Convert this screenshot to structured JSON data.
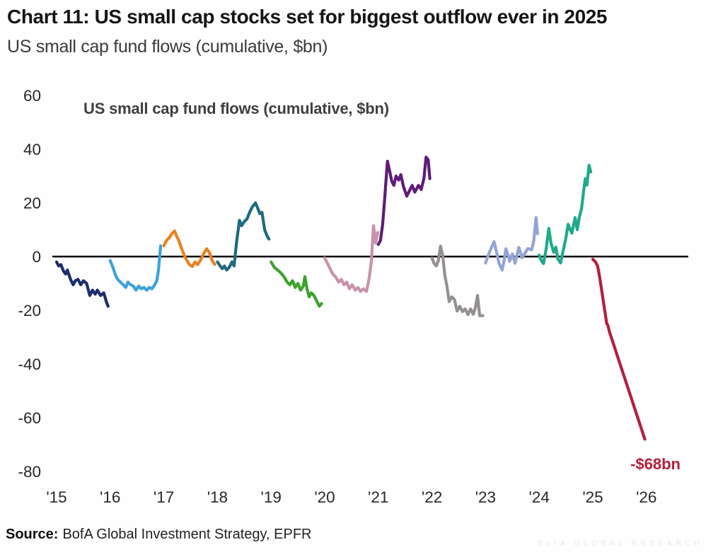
{
  "header": {
    "title": "Chart 11: US small cap stocks set for biggest outflow ever in 2025",
    "subtitle": "US small cap fund flows (cumulative, $bn)"
  },
  "chart_data": {
    "type": "line",
    "title": "US small cap fund flows (cumulative, $bn)",
    "ylabel": "",
    "xlabel": "",
    "ylim": [
      -80,
      60
    ],
    "y_ticks": [
      60,
      40,
      20,
      0,
      -20,
      -40,
      -60,
      -80
    ],
    "x_ticks": [
      "'15",
      "'16",
      "'17",
      "'18",
      "'19",
      "'20",
      "'21",
      "'22",
      "'23",
      "'24",
      "'25",
      "'26"
    ],
    "grid": false,
    "zero_line": true,
    "legend_position": "none",
    "unit": "$bn",
    "annotation": {
      "text": "-$68bn",
      "color": "#b41f3a",
      "x_year": "'26",
      "value": -68
    },
    "series": [
      {
        "name": "2015",
        "year": 2015,
        "color": "#1c2d6e",
        "points": [
          [
            0.0,
            -2
          ],
          [
            0.04,
            -3.5
          ],
          [
            0.08,
            -3
          ],
          [
            0.13,
            -5.5
          ],
          [
            0.17,
            -6.5
          ],
          [
            0.2,
            -5
          ],
          [
            0.26,
            -8.5
          ],
          [
            0.31,
            -10.5
          ],
          [
            0.35,
            -9
          ],
          [
            0.4,
            -8.5
          ],
          [
            0.45,
            -10.5
          ],
          [
            0.5,
            -9
          ],
          [
            0.56,
            -10
          ],
          [
            0.62,
            -14.5
          ],
          [
            0.67,
            -12.5
          ],
          [
            0.72,
            -14
          ],
          [
            0.76,
            -12.5
          ],
          [
            0.82,
            -14.5
          ],
          [
            0.88,
            -13.5
          ],
          [
            0.93,
            -17
          ],
          [
            0.96,
            -18.5
          ]
        ]
      },
      {
        "name": "2016",
        "year": 2016,
        "color": "#3ba2df",
        "points": [
          [
            0.0,
            -1.5
          ],
          [
            0.05,
            -4
          ],
          [
            0.1,
            -7
          ],
          [
            0.14,
            -8.5
          ],
          [
            0.19,
            -9.5
          ],
          [
            0.24,
            -10.5
          ],
          [
            0.29,
            -11.5
          ],
          [
            0.33,
            -9.5
          ],
          [
            0.38,
            -10.5
          ],
          [
            0.43,
            -11
          ],
          [
            0.48,
            -12.5
          ],
          [
            0.53,
            -11
          ],
          [
            0.58,
            -12
          ],
          [
            0.63,
            -11.5
          ],
          [
            0.68,
            -12.5
          ],
          [
            0.73,
            -11.5
          ],
          [
            0.78,
            -12
          ],
          [
            0.83,
            -10.5
          ],
          [
            0.87,
            -9
          ],
          [
            0.9,
            -5
          ],
          [
            0.94,
            4
          ]
        ]
      },
      {
        "name": "2017",
        "year": 2017,
        "color": "#e8811c",
        "points": [
          [
            0.0,
            4
          ],
          [
            0.05,
            6
          ],
          [
            0.1,
            7
          ],
          [
            0.15,
            8.5
          ],
          [
            0.2,
            9.5
          ],
          [
            0.24,
            7.5
          ],
          [
            0.28,
            6
          ],
          [
            0.33,
            3
          ],
          [
            0.38,
            0.5
          ],
          [
            0.43,
            -1.5
          ],
          [
            0.48,
            -3
          ],
          [
            0.53,
            -3.7
          ],
          [
            0.58,
            -2
          ],
          [
            0.63,
            -3
          ],
          [
            0.68,
            -1.5
          ],
          [
            0.74,
            1
          ],
          [
            0.8,
            2.9
          ],
          [
            0.85,
            1.5
          ],
          [
            0.9,
            -1.5
          ],
          [
            0.95,
            -2.9
          ]
        ]
      },
      {
        "name": "2018",
        "year": 2018,
        "color": "#1d6b7d",
        "points": [
          [
            0.0,
            -2
          ],
          [
            0.05,
            -3.5
          ],
          [
            0.09,
            -4.5
          ],
          [
            0.13,
            -3.5
          ],
          [
            0.17,
            -5
          ],
          [
            0.22,
            -4
          ],
          [
            0.27,
            -2
          ],
          [
            0.31,
            -3.5
          ],
          [
            0.36,
            6
          ],
          [
            0.41,
            13.5
          ],
          [
            0.45,
            11.5
          ],
          [
            0.5,
            13
          ],
          [
            0.55,
            14
          ],
          [
            0.6,
            16.5
          ],
          [
            0.65,
            18.5
          ],
          [
            0.71,
            20
          ],
          [
            0.75,
            18
          ],
          [
            0.79,
            16
          ],
          [
            0.83,
            16.5
          ],
          [
            0.88,
            10
          ],
          [
            0.93,
            7.5
          ],
          [
            0.96,
            6.5
          ]
        ]
      },
      {
        "name": "2019",
        "year": 2019,
        "color": "#3da32b",
        "points": [
          [
            0.0,
            -2
          ],
          [
            0.06,
            -4
          ],
          [
            0.12,
            -5
          ],
          [
            0.18,
            -6
          ],
          [
            0.24,
            -7.5
          ],
          [
            0.3,
            -9.5
          ],
          [
            0.35,
            -10.5
          ],
          [
            0.4,
            -9
          ],
          [
            0.45,
            -11.5
          ],
          [
            0.5,
            -10
          ],
          [
            0.55,
            -12.5
          ],
          [
            0.6,
            -11
          ],
          [
            0.63,
            -7.5
          ],
          [
            0.67,
            -12
          ],
          [
            0.71,
            -15
          ],
          [
            0.75,
            -13.5
          ],
          [
            0.8,
            -14.5
          ],
          [
            0.85,
            -16.5
          ],
          [
            0.9,
            -18.5
          ],
          [
            0.94,
            -17.5
          ]
        ]
      },
      {
        "name": "2020",
        "year": 2020,
        "color": "#c793a9",
        "points": [
          [
            0.0,
            -0.5
          ],
          [
            0.05,
            -2.5
          ],
          [
            0.1,
            -4.5
          ],
          [
            0.15,
            -6.5
          ],
          [
            0.2,
            -7.5
          ],
          [
            0.26,
            -9.5
          ],
          [
            0.31,
            -8.5
          ],
          [
            0.36,
            -10.5
          ],
          [
            0.41,
            -9.5
          ],
          [
            0.46,
            -12
          ],
          [
            0.51,
            -10.5
          ],
          [
            0.57,
            -12.5
          ],
          [
            0.62,
            -11.5
          ],
          [
            0.67,
            -13
          ],
          [
            0.72,
            -12
          ],
          [
            0.78,
            -13
          ],
          [
            0.83,
            -8
          ],
          [
            0.87,
            -2
          ],
          [
            0.91,
            11.5
          ],
          [
            0.95,
            5
          ],
          [
            0.99,
            9
          ]
        ]
      },
      {
        "name": "2021",
        "year": 2021,
        "color": "#5e1c78",
        "points": [
          [
            0.0,
            4.5
          ],
          [
            0.04,
            6
          ],
          [
            0.08,
            12
          ],
          [
            0.12,
            22
          ],
          [
            0.17,
            35.5
          ],
          [
            0.21,
            32
          ],
          [
            0.25,
            28
          ],
          [
            0.29,
            26.5
          ],
          [
            0.33,
            30
          ],
          [
            0.38,
            28.5
          ],
          [
            0.42,
            30.5
          ],
          [
            0.47,
            26
          ],
          [
            0.53,
            22.5
          ],
          [
            0.58,
            24.5
          ],
          [
            0.63,
            26.5
          ],
          [
            0.68,
            24
          ],
          [
            0.75,
            26.5
          ],
          [
            0.8,
            25
          ],
          [
            0.85,
            29
          ],
          [
            0.89,
            37
          ],
          [
            0.93,
            36
          ],
          [
            0.96,
            29
          ]
        ]
      },
      {
        "name": "2022",
        "year": 2022,
        "color": "#949090",
        "points": [
          [
            0.0,
            -0.5
          ],
          [
            0.04,
            -2.5
          ],
          [
            0.08,
            -3.5
          ],
          [
            0.12,
            -1.5
          ],
          [
            0.16,
            3.9
          ],
          [
            0.2,
            0.5
          ],
          [
            0.24,
            -7
          ],
          [
            0.28,
            -11
          ],
          [
            0.32,
            -16.8
          ],
          [
            0.37,
            -15
          ],
          [
            0.42,
            -16
          ],
          [
            0.47,
            -20.3
          ],
          [
            0.52,
            -18.5
          ],
          [
            0.57,
            -20.5
          ],
          [
            0.62,
            -19.5
          ],
          [
            0.67,
            -21.6
          ],
          [
            0.72,
            -19.5
          ],
          [
            0.77,
            -21.5
          ],
          [
            0.81,
            -19
          ],
          [
            0.85,
            -14.5
          ],
          [
            0.89,
            -22
          ],
          [
            0.95,
            -22
          ]
        ]
      },
      {
        "name": "2023",
        "year": 2023,
        "color": "#93a5d4",
        "points": [
          [
            0.0,
            -2.4
          ],
          [
            0.05,
            0.5
          ],
          [
            0.1,
            3
          ],
          [
            0.16,
            5.5
          ],
          [
            0.2,
            2
          ],
          [
            0.25,
            -2.5
          ],
          [
            0.31,
            -5
          ],
          [
            0.35,
            -1
          ],
          [
            0.38,
            2.9
          ],
          [
            0.42,
            0.5
          ],
          [
            0.45,
            -1.8
          ],
          [
            0.5,
            1
          ],
          [
            0.55,
            -2.5
          ],
          [
            0.62,
            3.4
          ],
          [
            0.66,
            1
          ],
          [
            0.68,
            -0.5
          ],
          [
            0.74,
            1.5
          ],
          [
            0.79,
            3
          ],
          [
            0.86,
            2.5
          ],
          [
            0.9,
            6
          ],
          [
            0.94,
            14.5
          ],
          [
            0.97,
            8.5
          ]
        ]
      },
      {
        "name": "2024",
        "year": 2024,
        "color": "#1faa8b",
        "points": [
          [
            0.0,
            0.5
          ],
          [
            0.04,
            -1.5
          ],
          [
            0.08,
            -2.6
          ],
          [
            0.13,
            3
          ],
          [
            0.18,
            10.5
          ],
          [
            0.22,
            5
          ],
          [
            0.27,
            1.6
          ],
          [
            0.31,
            3.5
          ],
          [
            0.35,
            -1
          ],
          [
            0.4,
            -2.4
          ],
          [
            0.44,
            1.6
          ],
          [
            0.49,
            6
          ],
          [
            0.54,
            12
          ],
          [
            0.58,
            10
          ],
          [
            0.61,
            8.7
          ],
          [
            0.67,
            14.5
          ],
          [
            0.71,
            10
          ],
          [
            0.75,
            14.7
          ],
          [
            0.79,
            18
          ],
          [
            0.83,
            24.5
          ],
          [
            0.86,
            29
          ],
          [
            0.89,
            26.6
          ],
          [
            0.93,
            34
          ],
          [
            0.96,
            31.5
          ]
        ]
      },
      {
        "name": "2025",
        "year": 2025,
        "color": "#b41f3a",
        "points": [
          [
            0.0,
            -1
          ],
          [
            0.05,
            -2
          ],
          [
            0.09,
            -3.5
          ],
          [
            0.13,
            -8
          ],
          [
            0.26,
            -25
          ],
          [
            0.28,
            -25.5
          ],
          [
            0.31,
            -28
          ],
          [
            0.97,
            -68
          ]
        ]
      }
    ]
  },
  "footer": {
    "source_label": "Source:",
    "source_text": "BofA Global Investment Strategy, EPFR",
    "watermark": "BofA GLOBAL RESEARCH"
  }
}
